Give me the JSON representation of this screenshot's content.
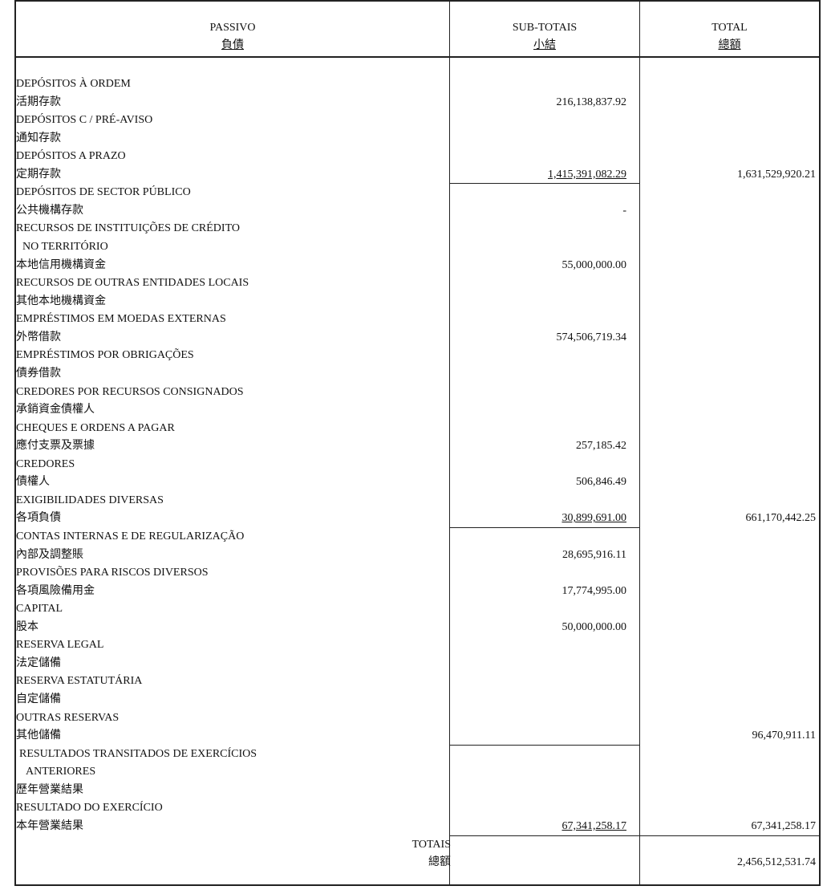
{
  "header": {
    "col1": {
      "pt": "PASSIVO",
      "cn": "負債"
    },
    "col2": {
      "pt": "SUB-TOTAIS",
      "cn": "小結"
    },
    "col3": {
      "pt": "TOTAL",
      "cn": "總額"
    }
  },
  "lines": [
    {
      "text": "DEPÓSITOS À ORDEM"
    },
    {
      "text": "活期存款",
      "sub": "216,138,837.92"
    },
    {
      "text": "DEPÓSITOS C / PRÉ-AVISO"
    },
    {
      "text": "通知存款"
    },
    {
      "text": "DEPÓSITOS A PRAZO"
    },
    {
      "text": "定期存款",
      "sub": "1,415,391,082.29",
      "total": "1,631,529,920.21",
      "sub_line": true
    },
    {
      "text": "DEPÓSITOS DE SECTOR PÚBLICO"
    },
    {
      "text": "公共機構存款",
      "sub": "-"
    },
    {
      "text": "RECURSOS DE INSTITUIÇÕES DE CRÉDITO"
    },
    {
      "text": "NO TERRITÓRIO",
      "indent": 2
    },
    {
      "text": "本地信用機構資金",
      "sub": "55,000,000.00"
    },
    {
      "text": "RECURSOS DE OUTRAS ENTIDADES LOCAIS"
    },
    {
      "text": "其他本地機構資金"
    },
    {
      "text": "EMPRÉSTIMOS EM MOEDAS EXTERNAS"
    },
    {
      "text": "外幣借款",
      "sub": "574,506,719.34"
    },
    {
      "text": "EMPRÉSTIMOS POR OBRIGAÇÕES"
    },
    {
      "text": "債券借款"
    },
    {
      "text": "CREDORES POR RECURSOS CONSIGNADOS"
    },
    {
      "text": "承銷資金債權人"
    },
    {
      "text": "CHEQUES E ORDENS A PAGAR"
    },
    {
      "text": "應付支票及票據",
      "sub": "257,185.42"
    },
    {
      "text": "CREDORES"
    },
    {
      "text": "債權人",
      "sub": "506,846.49"
    },
    {
      "text": "EXIGIBILIDADES DIVERSAS"
    },
    {
      "text": "各項負債",
      "sub": "30,899,691.00",
      "total": "661,170,442.25",
      "sub_line": true
    },
    {
      "text": "CONTAS INTERNAS E DE REGULARIZAÇÃO"
    },
    {
      "text": "內部及調整賬",
      "sub": "28,695,916.11"
    },
    {
      "text": "PROVISÕES PARA RISCOS DIVERSOS"
    },
    {
      "text": "各項風險備用金",
      "sub": "17,774,995.00"
    },
    {
      "text": "CAPITAL"
    },
    {
      "text": "股本",
      "sub": "50,000,000.00"
    },
    {
      "text": "RESERVA LEGAL"
    },
    {
      "text": "法定儲備"
    },
    {
      "text": "RESERVA ESTATUTÁRIA"
    },
    {
      "text": "自定儲備"
    },
    {
      "text": "OUTRAS RESERVAS"
    },
    {
      "text": "其他儲備",
      "total": "96,470,911.11",
      "sub_line": true
    },
    {
      "text": "RESULTADOS TRANSITADOS DE EXERCÍCIOS",
      "indent": 1
    },
    {
      "text": "ANTERIORES",
      "indent": 3
    },
    {
      "text": "歷年營業結果"
    },
    {
      "text": "RESULTADO DO EXERCÍCIO"
    },
    {
      "text": "本年營業結果",
      "sub": "67,341,258.17",
      "total": "67,341,258.17",
      "sub_line": true,
      "total_line": true
    },
    {
      "text": "TOTAIS",
      "align": "right"
    },
    {
      "text": "總額",
      "align": "right",
      "total": "2,456,512,531.74"
    }
  ]
}
